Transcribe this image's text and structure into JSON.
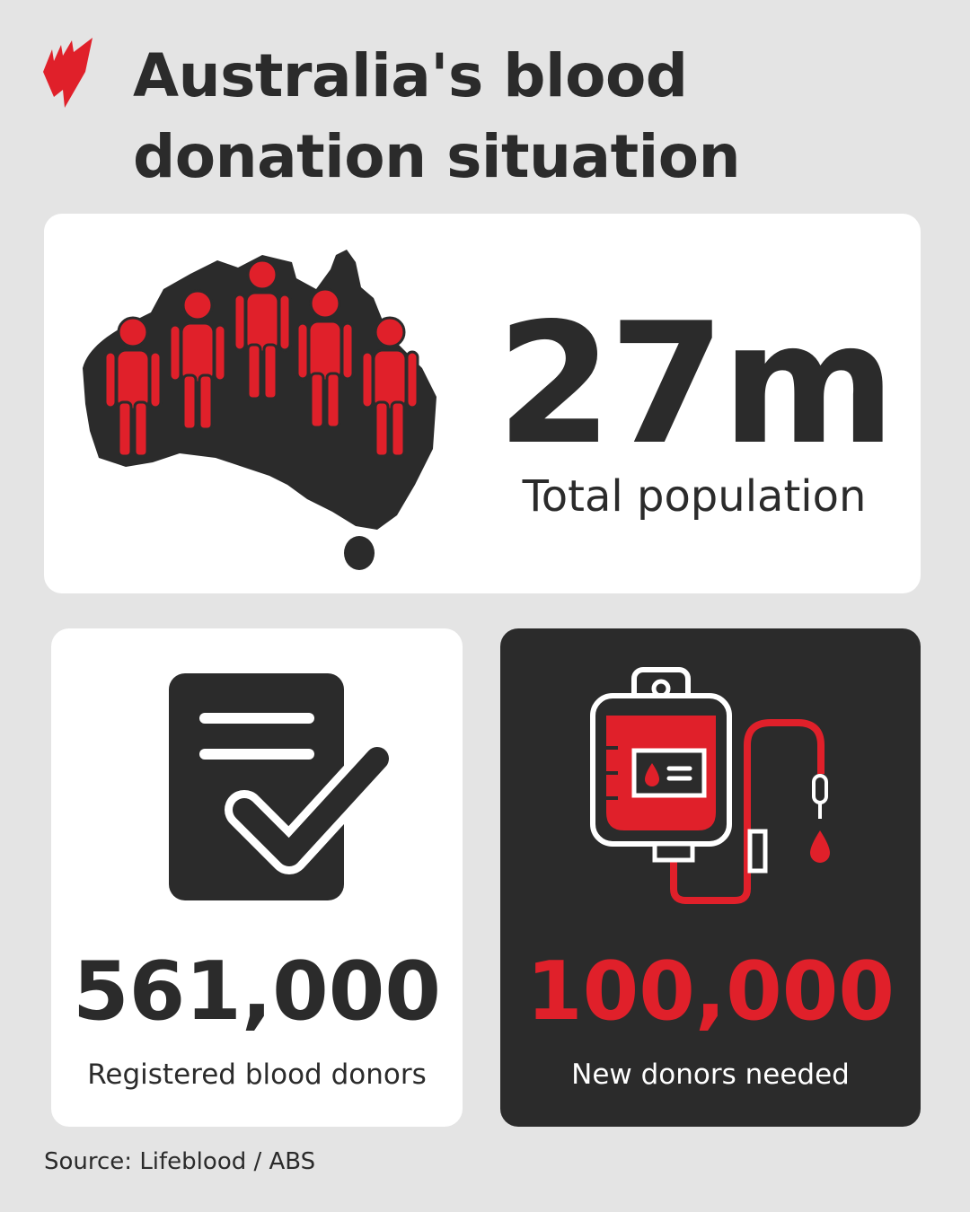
{
  "header": {
    "title_line1": "Australia's blood",
    "title_line2": "donation situation",
    "logo": "sbs-logo"
  },
  "stats": [
    {
      "value": "27m",
      "label": "Total population",
      "icon": "australia-map-people-icon"
    },
    {
      "value": "561,000",
      "label": "Registered blood donors",
      "icon": "checklist-document-icon"
    },
    {
      "value": "100,000",
      "label": "New donors needed",
      "icon": "blood-bag-icon"
    }
  ],
  "footer": {
    "source": "Source: Lifeblood / ABS"
  },
  "colors": {
    "background": "#e4e4e4",
    "dark": "#2b2b2b",
    "accent": "#e0202a",
    "card": "#ffffff"
  }
}
